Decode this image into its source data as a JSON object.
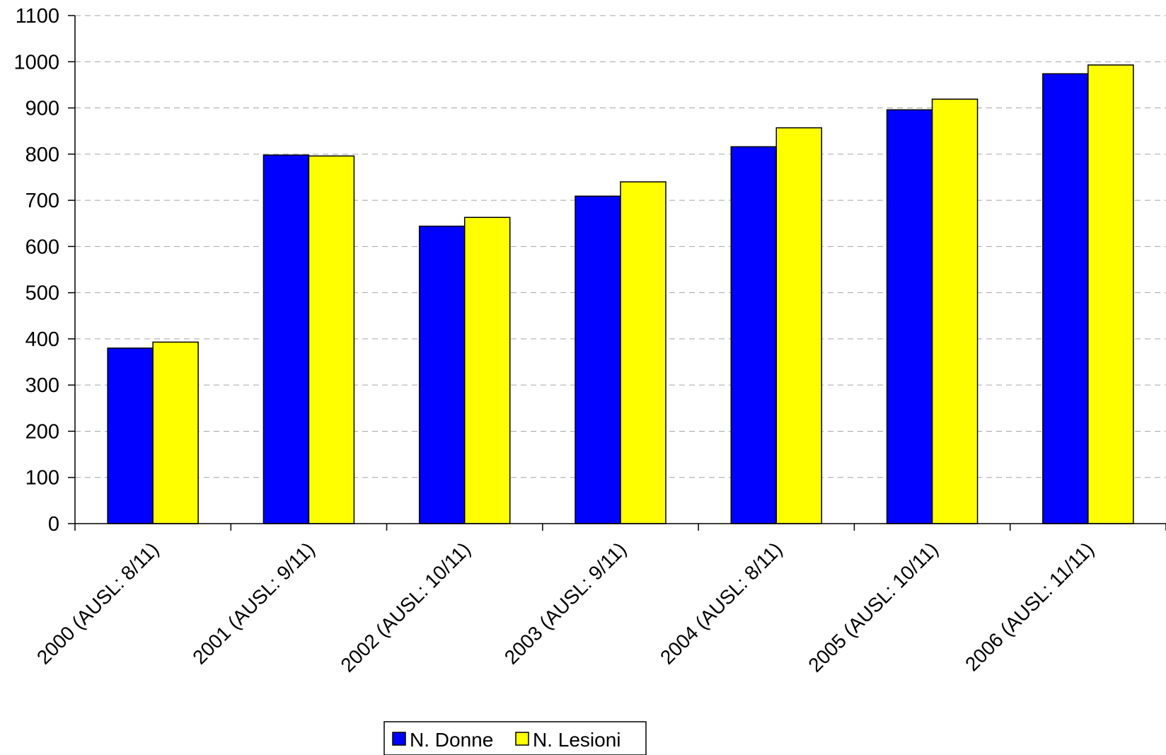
{
  "chart_data": {
    "type": "bar",
    "title": "",
    "xlabel": "",
    "ylabel": "",
    "ylim": [
      0,
      1100
    ],
    "yticks": [
      0,
      100,
      200,
      300,
      400,
      500,
      600,
      700,
      800,
      900,
      1000,
      1100
    ],
    "grid": "horizontal-dashed",
    "legend_position": "bottom-center",
    "categories": [
      "2000 (AUSL: 8/11)",
      "2001 (AUSL: 9/11)",
      "2002 (AUSL: 10/11)",
      "2003 (AUSL: 9/11)",
      "2004 (AUSL: 8/11)",
      "2005 (AUSL: 10/11)",
      "2006 (AUSL: 11/11)"
    ],
    "series": [
      {
        "name": "N. Donne",
        "color": "#0000FF",
        "values": [
          380,
          798,
          644,
          709,
          816,
          896,
          974
        ]
      },
      {
        "name": "N. Lesioni",
        "color": "#FFFF00",
        "values": [
          393,
          796,
          663,
          740,
          857,
          919,
          993
        ]
      }
    ]
  }
}
